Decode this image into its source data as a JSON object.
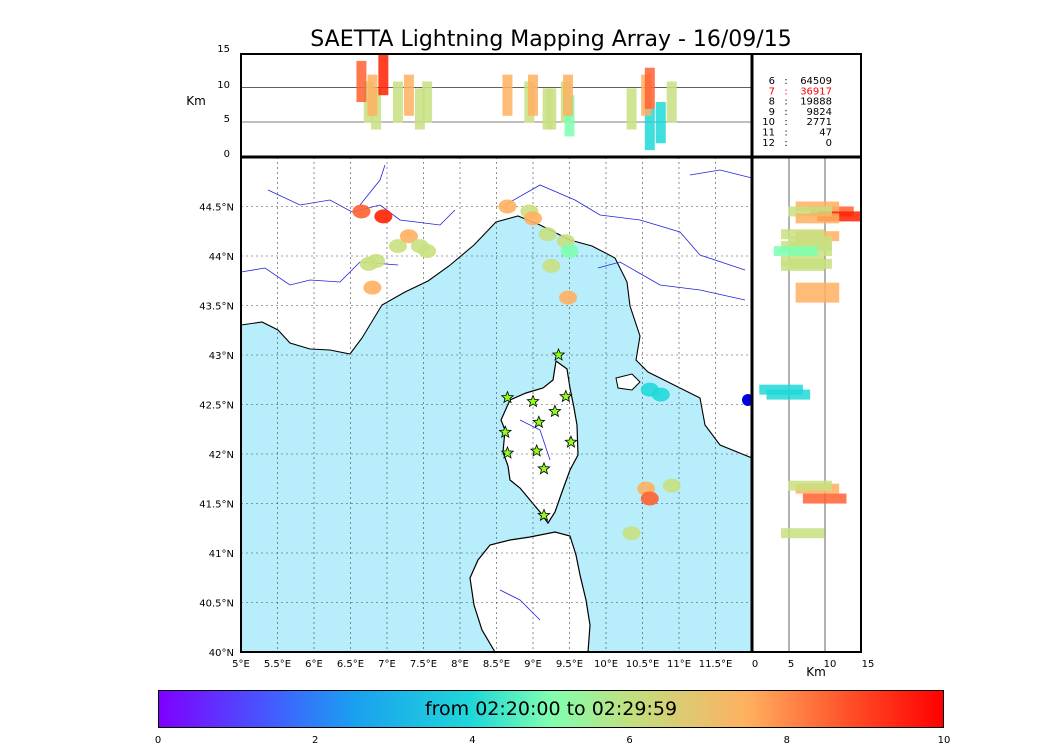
{
  "chart_data": {
    "type": "scatter",
    "title": "SAETTA Lightning Mapping Array - 16/09/15",
    "map": {
      "xlim": [
        5,
        12
      ],
      "ylim": [
        40,
        45
      ],
      "x_ticks": [
        "5°E",
        "5.5°E",
        "6°E",
        "6.5°E",
        "7°E",
        "7.5°E",
        "8°E",
        "8.5°E",
        "9°E",
        "9.5°E",
        "10°E",
        "10.5°E",
        "11°E",
        "11.5°E"
      ],
      "y_ticks": [
        "40°N",
        "40.5°N",
        "41°N",
        "41.5°N",
        "42°N",
        "42.5°N",
        "43°N",
        "43.5°N",
        "44°N",
        "44.5°N"
      ],
      "grid": true
    },
    "altitude_panel": {
      "ylabel": "Km",
      "ylim": [
        0,
        15
      ],
      "y_ticks": [
        "0",
        "5",
        "10",
        "15"
      ]
    },
    "side_panel": {
      "xlabel": "Km",
      "xlim": [
        0,
        15
      ],
      "x_ticks": [
        "0",
        "5",
        "10",
        "15"
      ]
    },
    "station_counts": [
      {
        "stations": "6",
        "count": "64509",
        "color": "#000000"
      },
      {
        "stations": "7",
        "count": "36917",
        "color": "#ff0000"
      },
      {
        "stations": "8",
        "count": "19888",
        "color": "#000000"
      },
      {
        "stations": "9",
        "count": "9824",
        "color": "#000000"
      },
      {
        "stations": "10",
        "count": "2771",
        "color": "#000000"
      },
      {
        "stations": "11",
        "count": "47",
        "color": "#000000"
      },
      {
        "stations": "12",
        "count": "0",
        "color": "#000000"
      }
    ],
    "sources": [
      {
        "lon": 6.75,
        "lat": 43.92,
        "alt": 8
      },
      {
        "lon": 6.85,
        "lat": 43.95,
        "alt": 7
      },
      {
        "lon": 7.15,
        "lat": 44.1,
        "alt": 8
      },
      {
        "lon": 7.3,
        "lat": 44.2,
        "alt": 9
      },
      {
        "lon": 7.45,
        "lat": 44.1,
        "alt": 7
      },
      {
        "lon": 7.55,
        "lat": 44.05,
        "alt": 8
      },
      {
        "lon": 6.8,
        "lat": 43.68,
        "alt": 9
      },
      {
        "lon": 6.65,
        "lat": 44.45,
        "alt": 11
      },
      {
        "lon": 6.95,
        "lat": 44.4,
        "alt": 12
      },
      {
        "lon": 8.65,
        "lat": 44.5,
        "alt": 9
      },
      {
        "lon": 8.95,
        "lat": 44.45,
        "alt": 8
      },
      {
        "lon": 9.0,
        "lat": 44.38,
        "alt": 9
      },
      {
        "lon": 9.2,
        "lat": 44.22,
        "alt": 7
      },
      {
        "lon": 9.45,
        "lat": 44.15,
        "alt": 8
      },
      {
        "lon": 9.5,
        "lat": 44.05,
        "alt": 6
      },
      {
        "lon": 9.25,
        "lat": 43.9,
        "alt": 7
      },
      {
        "lon": 9.48,
        "lat": 43.58,
        "alt": 9
      },
      {
        "lon": 10.6,
        "lat": 42.65,
        "alt": 4
      },
      {
        "lon": 10.75,
        "lat": 42.6,
        "alt": 5
      },
      {
        "lon": 10.55,
        "lat": 41.65,
        "alt": 9
      },
      {
        "lon": 10.6,
        "lat": 41.55,
        "alt": 10
      },
      {
        "lon": 10.9,
        "lat": 41.68,
        "alt": 8
      },
      {
        "lon": 10.35,
        "lat": 41.2,
        "alt": 7
      }
    ],
    "stations": [
      {
        "lon": 9.35,
        "lat": 43.0
      },
      {
        "lon": 8.65,
        "lat": 42.57
      },
      {
        "lon": 9.0,
        "lat": 42.53
      },
      {
        "lon": 9.45,
        "lat": 42.58
      },
      {
        "lon": 9.3,
        "lat": 42.43
      },
      {
        "lon": 9.08,
        "lat": 42.32
      },
      {
        "lon": 8.62,
        "lat": 42.22
      },
      {
        "lon": 9.52,
        "lat": 42.12
      },
      {
        "lon": 8.65,
        "lat": 42.01
      },
      {
        "lon": 9.05,
        "lat": 42.03
      },
      {
        "lon": 9.15,
        "lat": 41.85
      },
      {
        "lon": 9.15,
        "lat": 41.38
      }
    ],
    "colorbar": {
      "label": "from 02:20:00 to 02:29:59",
      "ticks": [
        "0",
        "2",
        "4",
        "6",
        "8",
        "10"
      ],
      "range": [
        0,
        10
      ]
    }
  }
}
